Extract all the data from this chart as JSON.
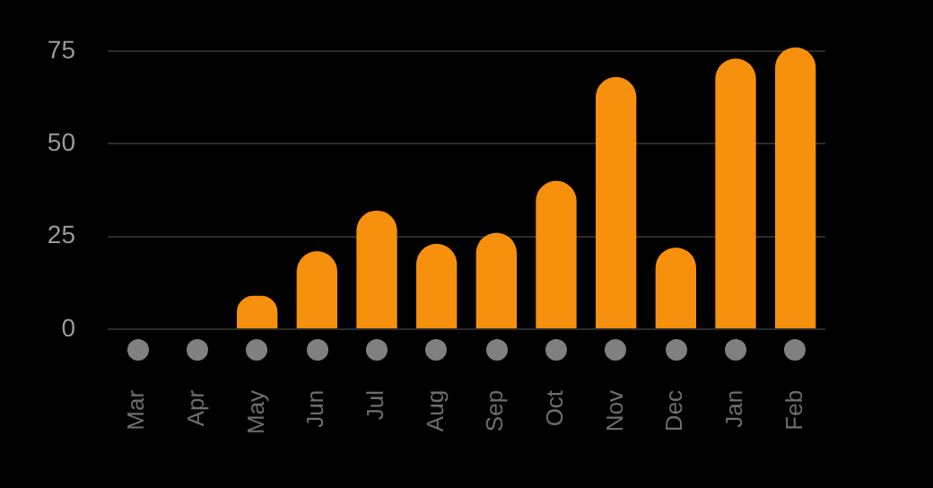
{
  "chart_data": {
    "type": "bar",
    "categories": [
      "Mar",
      "Apr",
      "May",
      "Jun",
      "Jul",
      "Aug",
      "Sep",
      "Oct",
      "Nov",
      "Dec",
      "Jan",
      "Feb"
    ],
    "values": [
      0,
      0,
      9,
      21,
      32,
      23,
      26,
      40,
      68,
      22,
      73,
      76
    ],
    "color": "#f7900c",
    "ylim": [
      0,
      76
    ],
    "yticks": [
      0,
      25,
      50,
      75
    ],
    "grid": "y",
    "legend": false
  }
}
